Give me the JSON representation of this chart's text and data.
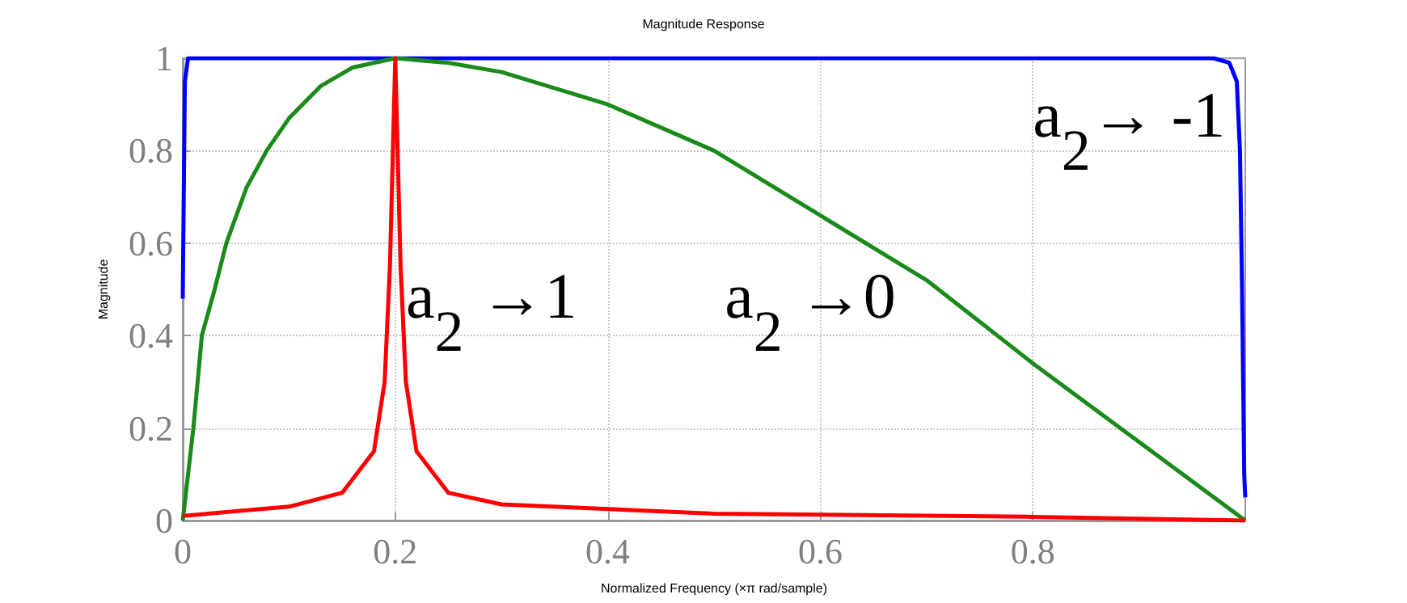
{
  "chart_data": {
    "type": "line",
    "title": "Magnitude Response",
    "xlabel": "Normalized Frequency (×π rad/sample)",
    "ylabel": "Magnitude",
    "xlim": [
      0,
      1
    ],
    "xticks": [
      0,
      0.2,
      0.4,
      0.6,
      0.8
    ],
    "ylim": [
      0,
      1
    ],
    "yticks": [
      0,
      0.2,
      0.4,
      0.6,
      0.8,
      1
    ],
    "grid": true,
    "series": [
      {
        "color": "#0000ff",
        "x": [
          0,
          0.002,
          0.005,
          0.02,
          0.5,
          0.97,
          0.985,
          0.992,
          0.995,
          0.997,
          0.999,
          1
        ],
        "values": [
          0.48,
          0.95,
          1,
          1,
          1,
          1,
          0.99,
          0.95,
          0.8,
          0.5,
          0.1,
          0.05
        ]
      },
      {
        "color": "#1a8a1a",
        "x": [
          0,
          0.005,
          0.01,
          0.018,
          0.03,
          0.041,
          0.06,
          0.079,
          0.1,
          0.13,
          0.16,
          0.2,
          0.25,
          0.3,
          0.4,
          0.5,
          0.6,
          0.7,
          0.8,
          0.9,
          1
        ],
        "values": [
          0,
          0.1,
          0.2,
          0.4,
          0.5,
          0.6,
          0.72,
          0.8,
          0.87,
          0.94,
          0.98,
          1,
          0.99,
          0.97,
          0.9,
          0.8,
          0.66,
          0.52,
          0.34,
          0.17,
          0
        ]
      },
      {
        "color": "#ff0000",
        "x": [
          0,
          0.1,
          0.15,
          0.18,
          0.19,
          0.195,
          0.2,
          0.205,
          0.21,
          0.22,
          0.25,
          0.3,
          0.5,
          0.8,
          1
        ],
        "values": [
          0.01,
          0.03,
          0.06,
          0.15,
          0.3,
          0.55,
          1,
          0.55,
          0.3,
          0.15,
          0.06,
          0.035,
          0.015,
          0.008,
          0
        ]
      }
    ],
    "annotations": [
      "a$_{2}$ →1",
      "a$_{2}$ →0",
      "a$_{2}$→ -1"
    ]
  }
}
